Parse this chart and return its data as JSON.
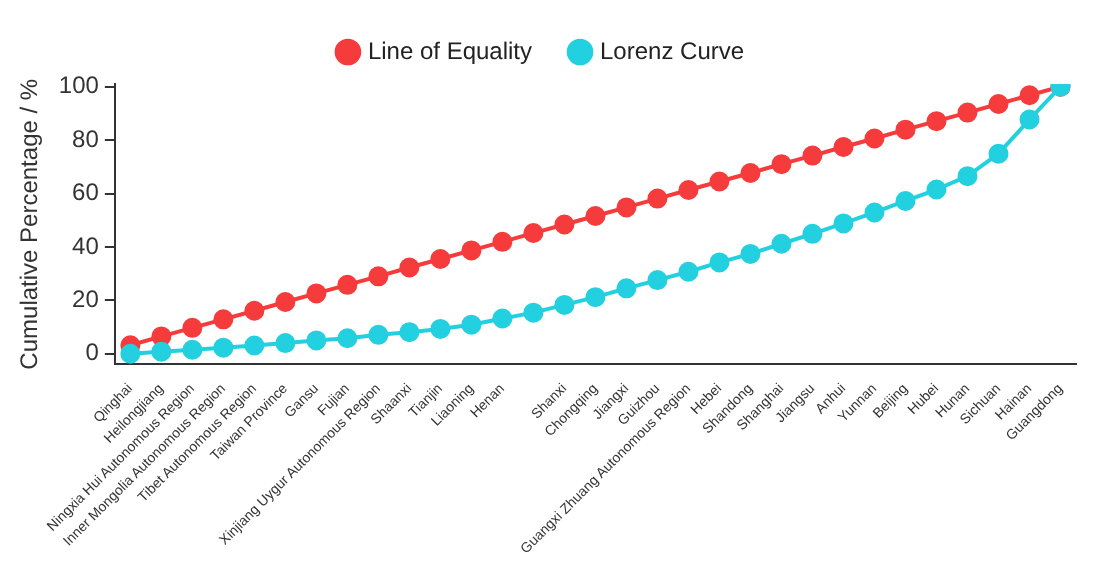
{
  "chart_data": {
    "type": "line",
    "ylabel": "Cumulative Percentage / %",
    "categories": [
      "Qinghai",
      "Heilongjiang",
      "Ningxia Hui Autonomous Region",
      "Inner Mongolia Autonomous Region",
      "Tibet Autonomous Region",
      "Taiwan Province",
      "Gansu",
      "Fujian",
      "Xinjiang Uygur Autonomous Region",
      "Shaanxi",
      "Tianjin",
      "Liaoning",
      "Henan",
      null,
      "Shanxi",
      "Chongqing",
      "Jiangxi",
      "Guizhou",
      "Guangxi Zhuang Autonomous Region",
      "Hebei",
      "Shandong",
      "Shanghai",
      "Jiangsu",
      "Anhui",
      "Yunnan",
      "Beijing",
      "Hubei",
      "Hunan",
      "Sichuan",
      "Hainan",
      "Guangdong"
    ],
    "series": [
      {
        "name": "Line of Equality",
        "color": "#f53b3b",
        "values": [
          3.2,
          6.5,
          9.7,
          12.9,
          16.1,
          19.4,
          22.6,
          25.8,
          29.0,
          32.3,
          35.5,
          38.7,
          41.9,
          45.2,
          48.4,
          51.6,
          54.8,
          58.1,
          61.3,
          64.5,
          67.7,
          71.0,
          74.2,
          77.4,
          80.6,
          83.9,
          87.1,
          90.3,
          93.5,
          96.8,
          100
        ]
      },
      {
        "name": "Lorenz Curve",
        "color": "#22d0e0",
        "values": [
          0,
          0.8,
          1.5,
          2.3,
          3.1,
          4.0,
          5.0,
          5.8,
          7.1,
          8.1,
          9.3,
          10.9,
          13.2,
          15.4,
          18.3,
          21.2,
          24.5,
          27.6,
          30.7,
          34.2,
          37.4,
          41.2,
          44.9,
          48.8,
          52.9,
          57.2,
          61.5,
          66.5,
          74.9,
          87.7,
          100
        ]
      }
    ],
    "ylim": [
      -4,
      101
    ],
    "yticks": [
      0,
      20,
      40,
      60,
      80,
      100
    ],
    "grid": false,
    "legend": "top",
    "marker": "circle",
    "line_style": "solid"
  }
}
